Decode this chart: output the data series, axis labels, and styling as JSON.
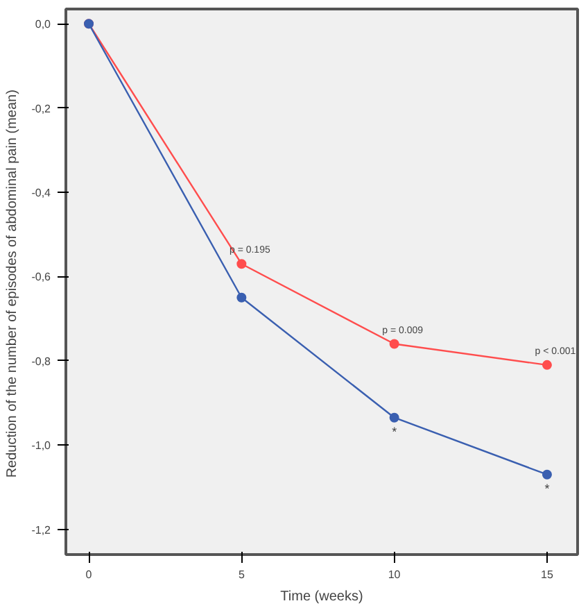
{
  "chart_data": {
    "type": "line",
    "xlabel": "Time (weeks)",
    "ylabel": "Reduction of  the number of episodes of abdominal pain (mean)",
    "series": [
      {
        "color": "#ff4d4d",
        "x": [
          0,
          5,
          10,
          15
        ],
        "values": [
          0,
          -0.57,
          -0.76,
          -0.81
        ]
      },
      {
        "color": "#3a5fb0",
        "x": [
          0,
          5,
          10,
          15
        ],
        "values": [
          0,
          -0.65,
          -0.935,
          -1.07
        ]
      }
    ],
    "xlim": [
      -0.75,
      16
    ],
    "xticks": [
      0,
      5,
      10,
      15
    ],
    "ylim": [
      -1.26,
      0.035
    ],
    "yticks": [
      {
        "value": 0,
        "label": "0,0"
      },
      {
        "value": -0.2,
        "label": "-0,2"
      },
      {
        "value": -0.4,
        "label": "-0,4"
      },
      {
        "value": -0.6,
        "label": "-0,6"
      },
      {
        "value": -0.8,
        "label": "-0,8"
      },
      {
        "value": -1.0,
        "label": "-1,0"
      },
      {
        "value": -1.2,
        "label": "-1,2"
      }
    ],
    "annotations": [
      {
        "text": "p = 0.195",
        "x": 5,
        "y": -0.57
      },
      {
        "text": "p = 0.009",
        "x": 10,
        "y": -0.76
      },
      {
        "text": "p < 0.001",
        "x": 15,
        "y": -0.81
      },
      {
        "text": "*",
        "x": 10,
        "y": -0.935
      },
      {
        "text": "*",
        "x": 15,
        "y": -1.07
      }
    ],
    "grid": false,
    "marker": "circle",
    "line_style": "solid"
  }
}
